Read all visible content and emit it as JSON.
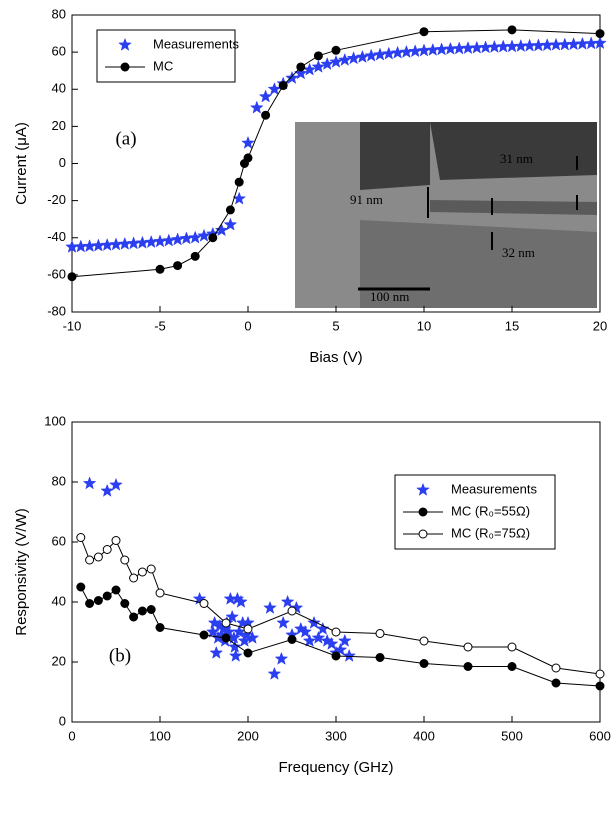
{
  "chart_data": [
    {
      "type": "line",
      "panel_label": "(a)",
      "xlabel": "Bias (V)",
      "ylabel": "Current (μA)",
      "xlim": [
        -10,
        20
      ],
      "xticks": [
        -10,
        -5,
        0,
        5,
        10,
        15,
        20
      ],
      "ylim": [
        -80,
        80
      ],
      "yticks": [
        -80,
        -60,
        -40,
        -20,
        0,
        20,
        40,
        60,
        80
      ],
      "legend": "upper left",
      "inset_labels": [
        "91 nm",
        "31 nm",
        "32 nm",
        "100 nm"
      ],
      "series": [
        {
          "name": "Measurements",
          "color": "#2b3ff0",
          "marker": "star",
          "marker_fill": "#2b3ff0",
          "connect": false,
          "x": [
            -10,
            -9.5,
            -9,
            -8.5,
            -8,
            -7.5,
            -7,
            -6.5,
            -6,
            -5.5,
            -5,
            -4.5,
            -4,
            -3.5,
            -3,
            -2.5,
            -2,
            -1.5,
            -1,
            -0.5,
            0,
            0.5,
            1,
            1.5,
            2,
            2.5,
            3,
            3.5,
            4,
            4.5,
            5,
            5.5,
            6,
            6.5,
            7,
            7.5,
            8,
            8.5,
            9,
            9.5,
            10,
            10.5,
            11,
            11.5,
            12,
            12.5,
            13,
            13.5,
            14,
            14.5,
            15,
            15.5,
            16,
            16.5,
            17,
            17.5,
            18,
            18.5,
            19,
            19.5,
            20
          ],
          "values": [
            -45,
            -44.8,
            -44.6,
            -44.3,
            -44,
            -43.7,
            -43.4,
            -43.1,
            -42.8,
            -42.4,
            -42,
            -41.6,
            -41,
            -40.4,
            -40,
            -39,
            -38,
            -36,
            -33,
            -19,
            11,
            30,
            36,
            40,
            43,
            46,
            48.5,
            50.5,
            52,
            53.5,
            54.7,
            55.7,
            56.6,
            57.3,
            58,
            58.6,
            59.1,
            59.6,
            60,
            60.4,
            60.8,
            61.1,
            61.4,
            61.7,
            61.9,
            62.1,
            62.3,
            62.5,
            62.7,
            62.9,
            63,
            63.2,
            63.4,
            63.5,
            63.7,
            63.9,
            64,
            64.2,
            64.4,
            64.6,
            64.8
          ]
        },
        {
          "name": "MC",
          "color": "#000000",
          "marker": "circle",
          "marker_fill": "#000000",
          "connect": true,
          "x": [
            -10,
            -5,
            -4,
            -3,
            -2,
            -1,
            -0.5,
            -0.2,
            0,
            1,
            2,
            3,
            4,
            5,
            10,
            15,
            20
          ],
          "values": [
            -61,
            -57,
            -55,
            -50,
            -40,
            -25,
            -10,
            0,
            3,
            26,
            42,
            52,
            58,
            61,
            71,
            72,
            70
          ]
        }
      ]
    },
    {
      "type": "line",
      "panel_label": "(b)",
      "xlabel": "Frequency (GHz)",
      "ylabel": "Responsivity (V/W)",
      "xlim": [
        0,
        600
      ],
      "xticks": [
        0,
        100,
        200,
        300,
        400,
        500,
        600
      ],
      "ylim": [
        0,
        100
      ],
      "yticks": [
        0,
        20,
        40,
        60,
        80,
        100
      ],
      "legend": "upper right",
      "series": [
        {
          "name": "Measurements",
          "color": "#2b3ff0",
          "marker": "star",
          "marker_fill": "#2b3ff0",
          "connect": false,
          "x": [
            20,
            40,
            50,
            145,
            160,
            162,
            164,
            166,
            168,
            170,
            172,
            174,
            176,
            178,
            180,
            182,
            184,
            185,
            186,
            188,
            190,
            192,
            194,
            196,
            198,
            200,
            205,
            225,
            230,
            238,
            240,
            245,
            250,
            255,
            260,
            265,
            270,
            275,
            280,
            285,
            290,
            295,
            300,
            305,
            310,
            315
          ],
          "values": [
            79.5,
            77,
            79,
            41,
            30,
            33,
            23,
            28,
            32,
            29,
            31,
            27,
            33,
            30,
            41,
            35,
            28,
            25,
            22,
            41,
            30,
            40,
            33,
            27,
            29,
            33,
            28,
            38,
            16,
            21,
            33,
            40,
            29,
            38,
            31,
            30,
            27,
            33,
            28,
            31,
            27,
            26,
            23,
            24,
            27,
            22
          ]
        },
        {
          "name": "MC (R₀=55Ω)",
          "color": "#000000",
          "marker": "circle",
          "marker_fill": "#000000",
          "connect": true,
          "x": [
            10,
            20,
            30,
            40,
            50,
            60,
            70,
            80,
            90,
            100,
            150,
            175,
            200,
            250,
            300,
            350,
            400,
            450,
            500,
            550,
            600
          ],
          "values": [
            45,
            39.5,
            40.5,
            42,
            44,
            39.5,
            35,
            37,
            37.5,
            31.5,
            29,
            28,
            23,
            27.5,
            22,
            21.5,
            19.5,
            18.5,
            18.5,
            13,
            12
          ]
        },
        {
          "name": "MC (R₀=75Ω)",
          "color": "#000000",
          "marker": "circle",
          "marker_fill": "#ffffff",
          "connect": true,
          "x": [
            10,
            20,
            30,
            40,
            50,
            60,
            70,
            80,
            90,
            100,
            150,
            175,
            200,
            250,
            300,
            350,
            400,
            450,
            500,
            550,
            600
          ],
          "values": [
            61.5,
            54,
            55,
            57.5,
            60.5,
            54,
            48,
            50,
            51,
            43,
            39.5,
            33,
            31,
            37,
            30,
            29.5,
            27,
            25,
            25,
            18,
            16
          ]
        }
      ]
    }
  ]
}
